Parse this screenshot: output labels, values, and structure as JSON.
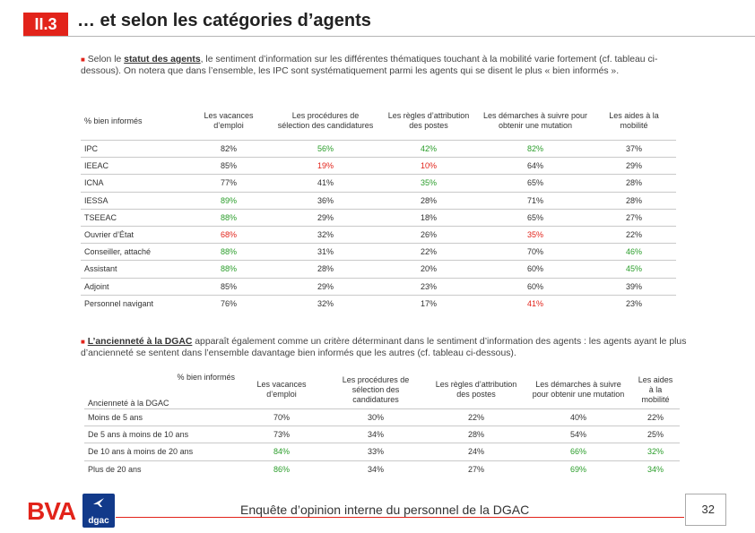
{
  "header": {
    "section": "II.3",
    "title": "… et selon les catégories d’agents"
  },
  "intro": {
    "pre": " Selon le ",
    "bold": "statut des agents",
    "post": ", le sentiment d’information sur les différentes thématiques touchant à la mobilité varie fortement (cf. tableau ci-dessous). On notera que dans l’ensemble, les IPC sont systématiquement parmi les agents qui se disent le plus « bien informés »."
  },
  "table1": {
    "corner": "% bien informés",
    "columns": [
      "Les vacances d’emploi",
      "Les procédures de sélection des candidatures",
      "Les règles d’attribution des postes",
      "Les démarches à suivre pour obtenir une mutation",
      "Les aides à la mobilité"
    ],
    "rows": [
      {
        "label": "IPC",
        "values": [
          "82%",
          "56%",
          "42%",
          "82%",
          "37%"
        ]
      },
      {
        "label": "IEEAC",
        "values": [
          "85%",
          "19%",
          "10%",
          "64%",
          "29%"
        ]
      },
      {
        "label": "ICNA",
        "values": [
          "77%",
          "41%",
          "35%",
          "65%",
          "28%"
        ]
      },
      {
        "label": "IESSA",
        "values": [
          "89%",
          "36%",
          "28%",
          "71%",
          "28%"
        ]
      },
      {
        "label": "TSEEAC",
        "values": [
          "88%",
          "29%",
          "18%",
          "65%",
          "27%"
        ]
      },
      {
        "label": "Ouvrier d’État",
        "values": [
          "68%",
          "32%",
          "26%",
          "35%",
          "22%"
        ]
      },
      {
        "label": "Conseiller, attaché",
        "values": [
          "88%",
          "31%",
          "22%",
          "70%",
          "46%"
        ]
      },
      {
        "label": "Assistant",
        "values": [
          "88%",
          "28%",
          "20%",
          "60%",
          "45%"
        ]
      },
      {
        "label": "Adjoint",
        "values": [
          "85%",
          "29%",
          "23%",
          "60%",
          "39%"
        ]
      },
      {
        "label": "Personnel navigant",
        "values": [
          "76%",
          "32%",
          "17%",
          "41%",
          "23%"
        ]
      }
    ],
    "colors": [
      [
        "",
        "g",
        "g",
        "g",
        ""
      ],
      [
        "",
        "r",
        "r",
        "",
        ""
      ],
      [
        "",
        "",
        "g",
        "",
        ""
      ],
      [
        "g",
        "",
        "",
        "",
        ""
      ],
      [
        "g",
        "",
        "",
        "",
        ""
      ],
      [
        "r",
        "",
        "",
        "r",
        ""
      ],
      [
        "g",
        "",
        "",
        "",
        "g"
      ],
      [
        "g",
        "",
        "",
        "",
        "g"
      ],
      [
        "",
        "",
        "",
        "",
        ""
      ],
      [
        "",
        "",
        "",
        "r",
        ""
      ]
    ]
  },
  "section2": {
    "bold": "L’ancienneté à la DGAC",
    "post": " apparaît également comme un critère déterminant dans le sentiment d’information des agents : les agents ayant le plus d’ancienneté se sentent dans l’ensemble davantage bien informés que les autres (cf. tableau ci-dessous)."
  },
  "table2": {
    "corner_top": "% bien informés",
    "corner_bottom": "Ancienneté à la DGAC",
    "columns": [
      "Les vacances d’emploi",
      "Les procédures de sélection des candidatures",
      "Les règles d’attribution des postes",
      "Les démarches à suivre pour obtenir une mutation",
      "Les aides à la mobilité"
    ],
    "rows": [
      {
        "label": "Moins de 5 ans",
        "values": [
          "70%",
          "30%",
          "22%",
          "40%",
          "22%"
        ]
      },
      {
        "label": "De 5 ans à moins de 10 ans",
        "values": [
          "73%",
          "34%",
          "28%",
          "54%",
          "25%"
        ]
      },
      {
        "label": "De 10 ans à moins de 20 ans",
        "values": [
          "84%",
          "33%",
          "24%",
          "66%",
          "32%"
        ]
      },
      {
        "label": "Plus de 20 ans",
        "values": [
          "86%",
          "34%",
          "27%",
          "69%",
          "34%"
        ]
      }
    ],
    "colors": [
      [
        "",
        "",
        "",
        "",
        ""
      ],
      [
        "",
        "",
        "",
        "",
        ""
      ],
      [
        "g",
        "",
        "",
        "g",
        "g"
      ],
      [
        "g",
        "",
        "",
        "g",
        "g"
      ]
    ]
  },
  "footer": {
    "logo_bva": "BVA",
    "logo_dgac": "dgac",
    "text": "Enquête d’opinion interne du personnel de la DGAC",
    "page": "32"
  },
  "palette": {
    "accent": "#e2231a",
    "good": "#2a9d2a",
    "dgac_blue": "#123a8a"
  }
}
